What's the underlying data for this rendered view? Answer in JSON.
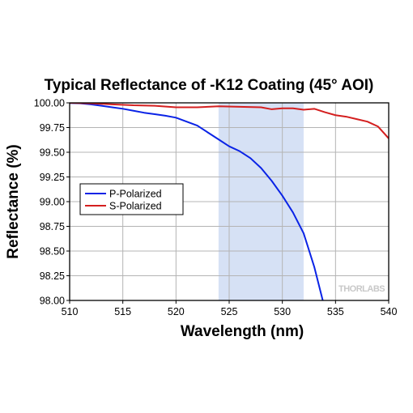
{
  "chart_data": {
    "type": "line",
    "title": "Typical Reflectance of -K12 Coating (45° AOI)",
    "xlabel": "Wavelength (nm)",
    "ylabel": "Reflectance (%)",
    "xlim": [
      510,
      540
    ],
    "ylim": [
      98.0,
      100.0
    ],
    "x_ticks": [
      "510",
      "515",
      "520",
      "525",
      "530",
      "535",
      "540"
    ],
    "y_ticks": [
      "100.00",
      "99.75",
      "99.50",
      "99.25",
      "99.00",
      "98.75",
      "98.50",
      "98.25",
      "98.00"
    ],
    "grid": true,
    "legend_position": "center-left",
    "highlight_band": {
      "from": 524,
      "to": 532,
      "color": "#d6e1f5"
    },
    "watermark": "THORLABS",
    "series": [
      {
        "name": "P-Polarized",
        "color": "#0a23e6",
        "x": [
          510,
          511,
          512,
          513,
          514,
          515,
          516,
          517,
          518,
          519,
          520,
          521,
          522,
          523,
          524,
          525,
          526,
          527,
          528,
          529,
          530,
          531,
          532,
          533,
          533.8
        ],
        "y": [
          99.998,
          99.995,
          99.985,
          99.97,
          99.955,
          99.94,
          99.92,
          99.9,
          99.885,
          99.87,
          99.85,
          99.81,
          99.77,
          99.7,
          99.63,
          99.56,
          99.51,
          99.44,
          99.34,
          99.21,
          99.06,
          98.89,
          98.68,
          98.34,
          98.0
        ]
      },
      {
        "name": "S-Polarized",
        "color": "#d41f1f",
        "x": [
          510,
          512,
          514,
          516,
          518,
          520,
          522,
          524,
          526,
          528,
          529,
          530,
          531,
          532,
          533,
          534,
          535,
          536,
          537,
          538,
          539,
          540
        ],
        "y": [
          100.0,
          99.995,
          99.985,
          99.975,
          99.97,
          99.955,
          99.955,
          99.965,
          99.96,
          99.955,
          99.935,
          99.945,
          99.945,
          99.93,
          99.94,
          99.905,
          99.875,
          99.86,
          99.835,
          99.81,
          99.76,
          99.64
        ]
      }
    ]
  }
}
